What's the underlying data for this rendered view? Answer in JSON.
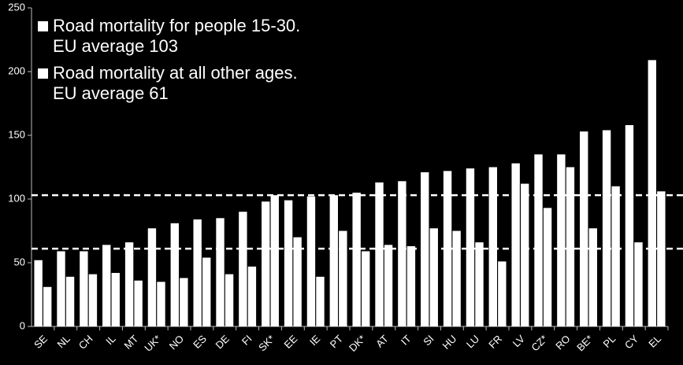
{
  "chart_data": {
    "type": "bar",
    "categories": [
      "SE",
      "NL",
      "CH",
      "IL",
      "MT",
      "UK*",
      "NO",
      "ES",
      "DE",
      "FI",
      "SK*",
      "EE",
      "IE",
      "PT",
      "DK*",
      "AT",
      "IT",
      "SI",
      "HU",
      "LU",
      "FR",
      "LV",
      "CZ*",
      "RO",
      "BE*",
      "PL",
      "CY",
      "EL"
    ],
    "series": [
      {
        "name": "Road mortality for people 15-30.\nEU average 103",
        "color": "#ffffff",
        "values": [
          52,
          59,
          59,
          64,
          66,
          77,
          81,
          84,
          85,
          90,
          98,
          99,
          102,
          103,
          105,
          113,
          114,
          121,
          122,
          124,
          125,
          128,
          135,
          135,
          153,
          154,
          158,
          209
        ]
      },
      {
        "name": "Road mortality at all other ages.\nEU average 61",
        "color": "#ffffff",
        "values": [
          31,
          39,
          41,
          42,
          36,
          35,
          38,
          54,
          41,
          47,
          103,
          70,
          39,
          75,
          59,
          64,
          63,
          77,
          75,
          66,
          51,
          112,
          93,
          125,
          77,
          110,
          66,
          106
        ]
      }
    ],
    "reference_lines": [
      103,
      61
    ],
    "ylim": [
      0,
      250
    ],
    "yticks": [
      0,
      50,
      100,
      150,
      200,
      250
    ],
    "grid": false,
    "legend": "top-left"
  }
}
